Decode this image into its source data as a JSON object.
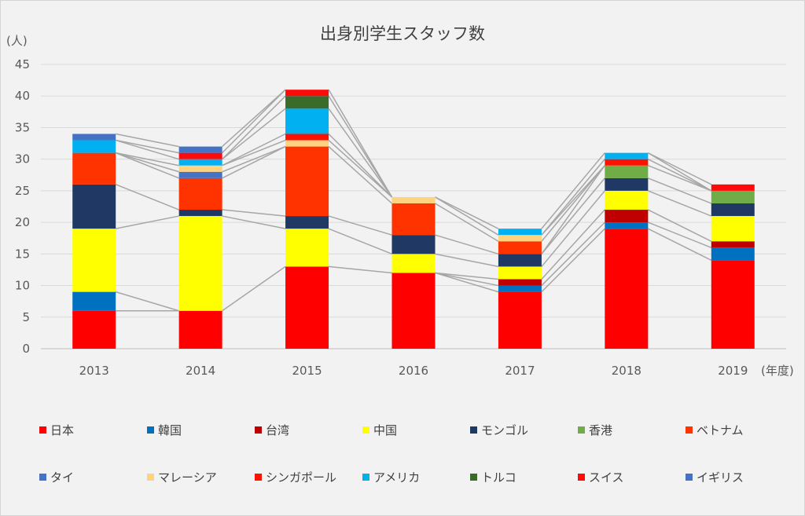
{
  "chart_data": {
    "type": "bar",
    "stacked": true,
    "title": "出身別学生スタッフ数",
    "ylabel": "(人)",
    "xlabel": "(年度)",
    "ylim": [
      0,
      45
    ],
    "yticks": [
      0,
      5,
      10,
      15,
      20,
      25,
      30,
      35,
      40,
      45
    ],
    "categories": [
      "2013",
      "2014",
      "2015",
      "2016",
      "2017",
      "2018",
      "2019"
    ],
    "grid": true,
    "legend_position": "bottom",
    "series_connectors": true,
    "series": [
      {
        "name": "日本",
        "color": "#ff0000",
        "values": [
          6,
          6,
          13,
          12,
          9,
          19,
          14
        ]
      },
      {
        "name": "韓国",
        "color": "#0070c0",
        "values": [
          3,
          0,
          0,
          0,
          1,
          1,
          2
        ]
      },
      {
        "name": "台湾",
        "color": "#c00000",
        "values": [
          0,
          0,
          0,
          0,
          1,
          2,
          1
        ]
      },
      {
        "name": "中国",
        "color": "#ffff00",
        "values": [
          10,
          15,
          6,
          3,
          2,
          3,
          4
        ]
      },
      {
        "name": "モンゴル",
        "color": "#1f3864",
        "values": [
          7,
          1,
          2,
          3,
          2,
          2,
          2
        ]
      },
      {
        "name": "香港",
        "color": "#70ad47",
        "values": [
          0,
          0,
          0,
          0,
          0,
          2,
          2
        ]
      },
      {
        "name": "ベトナム",
        "color": "#ff3300",
        "values": [
          5,
          5,
          11,
          5,
          2,
          0,
          0
        ]
      },
      {
        "name": "タイ",
        "color": "#4472c4",
        "values": [
          0,
          1,
          0,
          0,
          0,
          0,
          0
        ]
      },
      {
        "name": "マレーシア",
        "color": "#ffd27f",
        "values": [
          0,
          1,
          1,
          1,
          1,
          0,
          0
        ]
      },
      {
        "name": "シンガポール",
        "color": "#ff1100",
        "values": [
          0,
          0,
          1,
          0,
          0,
          1,
          0
        ]
      },
      {
        "name": "アメリカ",
        "color": "#00b0f0",
        "values": [
          2,
          1,
          4,
          0,
          1,
          1,
          0
        ]
      },
      {
        "name": "トルコ",
        "color": "#3a6b2a",
        "values": [
          0,
          0,
          2,
          0,
          0,
          0,
          0
        ]
      },
      {
        "name": "スイス",
        "color": "#ff0a0a",
        "values": [
          0,
          1,
          1,
          0,
          0,
          0,
          1
        ]
      },
      {
        "name": "イギリス",
        "color": "#4472c4",
        "values": [
          1,
          1,
          0,
          0,
          0,
          0,
          0
        ]
      }
    ]
  }
}
